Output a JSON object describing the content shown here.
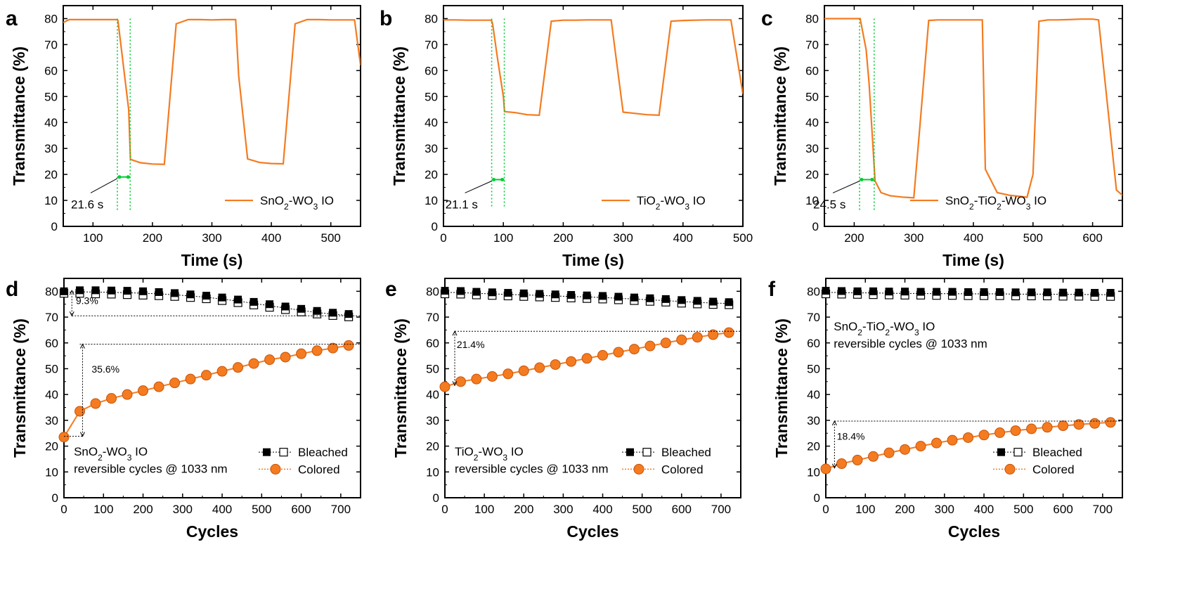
{
  "chart_data": [
    {
      "panel": "a",
      "type": "line",
      "xlabel": "Time (s)",
      "ylabel": "Transmittance (%)",
      "xlim": [
        50,
        550
      ],
      "ylim": [
        0,
        85
      ],
      "xticks": [
        100,
        200,
        300,
        400,
        500
      ],
      "yticks": [
        0,
        10,
        20,
        30,
        40,
        50,
        60,
        70,
        80
      ],
      "series": [
        {
          "name": "SnO₂-WO₃ IO",
          "color": "#f47b20",
          "x": [
            50,
            60,
            80,
            100,
            120,
            140,
            142,
            160,
            163,
            180,
            200,
            220,
            240,
            260,
            280,
            300,
            320,
            340,
            345,
            360,
            380,
            400,
            420,
            440,
            460,
            480,
            500,
            520,
            540,
            550
          ],
          "y": [
            78.5,
            79.6,
            79.6,
            79.6,
            79.6,
            79.6,
            79.3,
            45,
            25.8,
            24.5,
            24.0,
            23.9,
            78,
            79.6,
            79.6,
            79.5,
            79.6,
            79.6,
            58,
            26.0,
            24.6,
            24.2,
            24.1,
            78,
            79.6,
            79.6,
            79.5,
            79.5,
            79.5,
            62
          ]
        }
      ],
      "markers": {
        "vlines": [
          141,
          162.6
        ],
        "color": "#00cc33"
      },
      "annotations": [
        {
          "text": "21.6 s"
        }
      ]
    },
    {
      "panel": "b",
      "type": "line",
      "xlabel": "Time (s)",
      "ylabel": "Transmittance (%)",
      "xlim": [
        0,
        500
      ],
      "ylim": [
        0,
        85
      ],
      "xticks": [
        0,
        100,
        200,
        300,
        400,
        500
      ],
      "yticks": [
        0,
        10,
        20,
        30,
        40,
        50,
        60,
        70,
        80
      ],
      "series": [
        {
          "name": "TiO₂-WO₃ IO",
          "color": "#f47b20",
          "x": [
            0,
            20,
            40,
            60,
            80,
            82,
            90,
            100,
            102,
            120,
            140,
            160,
            180,
            200,
            220,
            240,
            260,
            280,
            300,
            320,
            340,
            360,
            380,
            400,
            420,
            440,
            460,
            480,
            500
          ],
          "y": [
            79.5,
            79.5,
            79.4,
            79.4,
            79.4,
            78,
            65,
            50,
            44.2,
            43.8,
            43.0,
            42.8,
            79,
            79.4,
            79.4,
            79.5,
            79.5,
            79.5,
            44,
            43.5,
            43.0,
            42.8,
            79,
            79.3,
            79.4,
            79.5,
            79.5,
            79.5,
            51
          ]
        }
      ],
      "markers": {
        "vlines": [
          80.5,
          101.6
        ],
        "color": "#00cc33"
      },
      "annotations": [
        {
          "text": "21.1 s"
        }
      ]
    },
    {
      "panel": "c",
      "type": "line",
      "xlabel": "Time (s)",
      "ylabel": "Transmittance (%)",
      "xlim": [
        150,
        650
      ],
      "ylim": [
        0,
        85
      ],
      "xticks": [
        200,
        300,
        400,
        500,
        600
      ],
      "yticks": [
        0,
        10,
        20,
        30,
        40,
        50,
        60,
        70,
        80
      ],
      "series": [
        {
          "name": "SnO₂-TiO₂-WO₃ IO",
          "color": "#f47b20",
          "x": [
            150,
            170,
            190,
            210,
            220,
            225,
            235,
            245,
            260,
            280,
            300,
            310,
            325,
            340,
            360,
            380,
            400,
            415,
            420,
            440,
            460,
            480,
            490,
            500,
            510,
            525,
            540,
            560,
            580,
            600,
            610,
            640,
            650
          ],
          "y": [
            80,
            80,
            80,
            80,
            68,
            55,
            17.5,
            13,
            11.8,
            11.3,
            11.0,
            38,
            79.3,
            79.5,
            79.5,
            79.5,
            79.5,
            79.5,
            22,
            13,
            12,
            11.5,
            11.2,
            20,
            79,
            79.5,
            79.5,
            79.6,
            79.8,
            79.8,
            79.5,
            14,
            12
          ]
        }
      ],
      "markers": {
        "vlines": [
          209,
          233.5
        ],
        "color": "#00cc33"
      },
      "annotations": [
        {
          "text": "24.5 s"
        }
      ]
    },
    {
      "panel": "d",
      "type": "line",
      "xlabel": "Cycles",
      "ylabel": "Transmittance (%)",
      "xlim": [
        0,
        750
      ],
      "ylim": [
        0,
        85
      ],
      "xticks": [
        0,
        100,
        200,
        300,
        400,
        500,
        600,
        700
      ],
      "yticks": [
        0,
        10,
        20,
        30,
        40,
        50,
        60,
        70,
        80
      ],
      "series": [
        {
          "name": "Bleached",
          "marker": "square",
          "x": [
            0,
            40,
            80,
            120,
            160,
            200,
            240,
            280,
            320,
            360,
            400,
            440,
            480,
            520,
            560,
            600,
            640,
            680,
            720
          ],
          "y_filled": [
            80,
            80.4,
            80.4,
            80.3,
            80.2,
            80.0,
            79.7,
            79.3,
            78.8,
            78.3,
            77.6,
            76.8,
            75.9,
            75.0,
            74.1,
            73.2,
            72.4,
            71.7,
            71.2
          ],
          "y_open": [
            79.2,
            79.2,
            79.0,
            78.9,
            78.7,
            78.5,
            78.3,
            78.0,
            77.6,
            77.1,
            76.4,
            75.6,
            74.7,
            73.8,
            72.9,
            72.0,
            71.2,
            70.6,
            70.1
          ]
        },
        {
          "name": "Colored",
          "marker": "circle",
          "x": [
            0,
            40,
            80,
            120,
            160,
            200,
            240,
            280,
            320,
            360,
            400,
            440,
            480,
            520,
            560,
            600,
            640,
            680,
            720
          ],
          "y": [
            23.5,
            33.5,
            36.5,
            38.5,
            40.0,
            41.5,
            43.0,
            44.5,
            46.0,
            47.5,
            49.0,
            50.5,
            52.0,
            53.5,
            54.5,
            55.8,
            57.0,
            58.0,
            59.0
          ]
        }
      ],
      "annotations": [
        {
          "text": "9.3%"
        },
        {
          "text": "35.6%"
        },
        {
          "text": "SnO₂-WO₃ IO"
        },
        {
          "text": "reversible cycles @ 1033 nm"
        }
      ]
    },
    {
      "panel": "e",
      "type": "line",
      "xlabel": "Cycles",
      "ylabel": "Transmittance (%)",
      "xlim": [
        0,
        750
      ],
      "ylim": [
        0,
        85
      ],
      "xticks": [
        0,
        100,
        200,
        300,
        400,
        500,
        600,
        700
      ],
      "yticks": [
        0,
        10,
        20,
        30,
        40,
        50,
        60,
        70,
        80
      ],
      "series": [
        {
          "name": "Bleached",
          "marker": "square",
          "x": [
            0,
            40,
            80,
            120,
            160,
            200,
            240,
            280,
            320,
            360,
            400,
            440,
            480,
            520,
            560,
            600,
            640,
            680,
            720
          ],
          "y_filled": [
            80.2,
            80.1,
            79.8,
            79.6,
            79.4,
            79.2,
            79.0,
            78.8,
            78.6,
            78.4,
            78.2,
            77.9,
            77.6,
            77.3,
            77.0,
            76.6,
            76.3,
            76.0,
            75.8
          ],
          "y_open": [
            79.0,
            78.9,
            78.6,
            78.4,
            78.2,
            78.0,
            77.8,
            77.6,
            77.4,
            77.2,
            77.0,
            76.7,
            76.4,
            76.1,
            75.8,
            75.4,
            75.1,
            74.9,
            74.8
          ]
        },
        {
          "name": "Colored",
          "marker": "circle",
          "x": [
            0,
            40,
            80,
            120,
            160,
            200,
            240,
            280,
            320,
            360,
            400,
            440,
            480,
            520,
            560,
            600,
            640,
            680,
            720
          ],
          "y": [
            43.0,
            45.0,
            46.0,
            47.0,
            48.0,
            49.2,
            50.4,
            51.6,
            52.8,
            54.0,
            55.2,
            56.4,
            57.6,
            58.8,
            60.0,
            61.2,
            62.2,
            63.2,
            64.0
          ]
        }
      ],
      "annotations": [
        {
          "text": "21.4%"
        },
        {
          "text": "TiO₂-WO₃ IO"
        },
        {
          "text": "reversible cycles @ 1033 nm"
        }
      ]
    },
    {
      "panel": "f",
      "type": "line",
      "xlabel": "Cycles",
      "ylabel": "Transmittance (%)",
      "xlim": [
        0,
        750
      ],
      "ylim": [
        0,
        85
      ],
      "xticks": [
        0,
        100,
        200,
        300,
        400,
        500,
        600,
        700
      ],
      "yticks": [
        0,
        10,
        20,
        30,
        40,
        50,
        60,
        70,
        80
      ],
      "series": [
        {
          "name": "Bleached",
          "marker": "square",
          "x": [
            0,
            40,
            80,
            120,
            160,
            200,
            240,
            280,
            320,
            360,
            400,
            440,
            480,
            520,
            560,
            600,
            640,
            680,
            720
          ],
          "y_filled": [
            80.2,
            80.1,
            80.0,
            80.0,
            79.9,
            79.9,
            79.8,
            79.8,
            79.8,
            79.7,
            79.7,
            79.7,
            79.6,
            79.6,
            79.6,
            79.5,
            79.5,
            79.4,
            79.4
          ],
          "y_open": [
            79.0,
            78.9,
            78.8,
            78.7,
            78.6,
            78.5,
            78.5,
            78.4,
            78.4,
            78.3,
            78.3,
            78.3,
            78.2,
            78.2,
            78.2,
            78.1,
            78.1,
            78.0,
            78.0
          ]
        },
        {
          "name": "Colored",
          "marker": "circle",
          "x": [
            0,
            40,
            80,
            120,
            160,
            200,
            240,
            280,
            320,
            360,
            400,
            440,
            480,
            520,
            560,
            600,
            640,
            680,
            720
          ],
          "y": [
            11.2,
            13.2,
            14.6,
            16.0,
            17.4,
            18.7,
            20.0,
            21.2,
            22.3,
            23.3,
            24.3,
            25.2,
            26.0,
            26.7,
            27.3,
            27.9,
            28.4,
            28.8,
            29.2
          ]
        }
      ],
      "annotations": [
        {
          "text": "18.4%"
        },
        {
          "text": "SnO₂-TiO₂-WO₃ IO"
        },
        {
          "text": "reversible cycles @ 1033 nm"
        }
      ]
    }
  ],
  "colors": {
    "line_orange": "#f47b20",
    "marker_orange": "#f47b20",
    "marker_edge": "#c8540a",
    "green_marker": "#00cc33",
    "axis": "#000000"
  }
}
